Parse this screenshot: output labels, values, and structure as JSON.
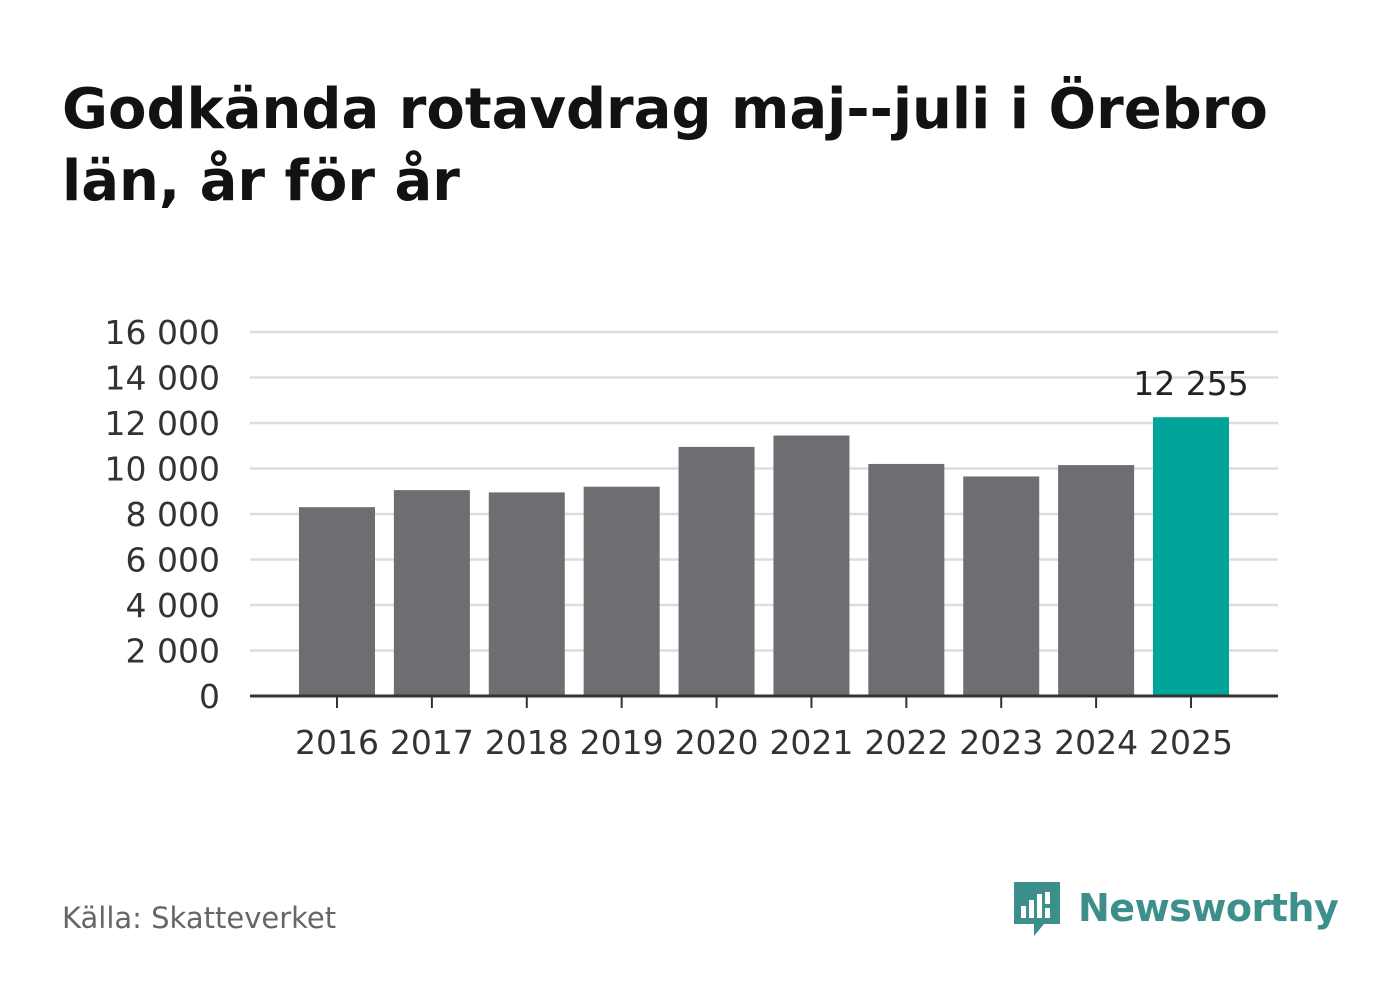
{
  "title": "Godkända rotavdrag maj--juli i Örebro län, år för år",
  "source": "Källa: Skatteverket",
  "brand": {
    "name": "Newsworthy",
    "icon": "newsworthy-logo-icon",
    "color": "#3c8f8a"
  },
  "colors": {
    "bar": "#6e6d72",
    "highlight": "#00a499",
    "grid": "#dddddd",
    "axis": "#333333",
    "text": "#333333"
  },
  "chart_data": {
    "type": "bar",
    "categories": [
      "2016",
      "2017",
      "2018",
      "2019",
      "2020",
      "2021",
      "2022",
      "2023",
      "2024",
      "2025"
    ],
    "values": [
      8300,
      9050,
      8950,
      9200,
      10950,
      11450,
      10200,
      9650,
      10150,
      12255
    ],
    "highlight_index": 9,
    "data_labels": [
      {
        "index": 9,
        "text": "12 255"
      }
    ],
    "title": "Godkända rotavdrag maj--juli i Örebro län, år för år",
    "xlabel": "",
    "ylabel": "",
    "ylim": [
      0,
      16000
    ],
    "yticks": [
      0,
      2000,
      4000,
      6000,
      8000,
      10000,
      12000,
      14000,
      16000
    ],
    "ytick_labels": [
      "0",
      "2 000",
      "4 000",
      "6 000",
      "8 000",
      "10 000",
      "12 000",
      "14 000",
      "16 000"
    ],
    "grid": true,
    "legend": "none"
  }
}
